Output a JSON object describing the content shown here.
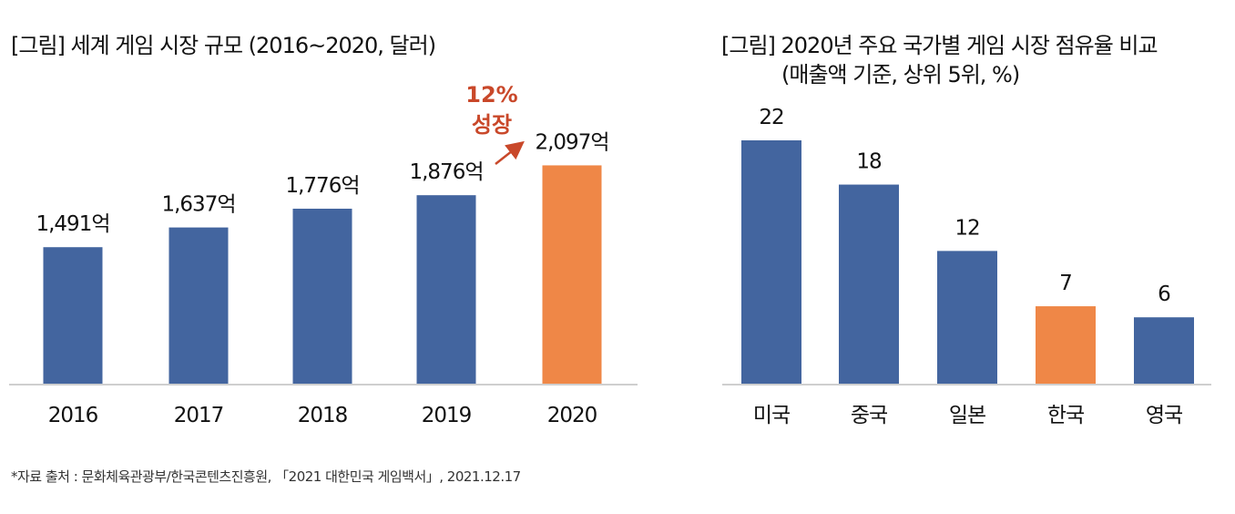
{
  "chart_data": [
    {
      "type": "bar",
      "title": "[그림] 세계 게임 시장 규모 (2016~2020, 달러)",
      "xlabel": "",
      "ylabel": "",
      "categories": [
        "2016",
        "2017",
        "2018",
        "2019",
        "2020"
      ],
      "values": [
        1491,
        1637,
        1776,
        1876,
        2097
      ],
      "data_labels": [
        "1,491억",
        "1,637억",
        "1,776억",
        "1,876억",
        "2,097억"
      ],
      "highlight_index": 4,
      "ylim": [
        480,
        2100
      ],
      "grid": false,
      "annotation": {
        "line1": "12%",
        "line2": "성장"
      }
    },
    {
      "type": "bar",
      "title": "[그림] 2020년 주요 국가별 게임 시장 점유율 비교",
      "subtitle": "(매출액 기준, 상위 5위, %)",
      "xlabel": "",
      "ylabel": "",
      "categories": [
        "미국",
        "중국",
        "일본",
        "한국",
        "영국"
      ],
      "values": [
        22,
        18,
        12,
        7,
        6
      ],
      "data_labels": [
        "22",
        "18",
        "12",
        "7",
        "6"
      ],
      "highlight_index": 3,
      "ylim": [
        0,
        22
      ],
      "grid": false
    }
  ],
  "colors": {
    "bar": "#43659f",
    "highlight": "#ef8747",
    "annotation": "#c9482a",
    "axis": "#bfbfbf"
  },
  "footnote": "*자료 출처 : 문화체육관광부/한국콘텐츠진흥원, 「2021 대한민국 게임백서」, 2021.12.17"
}
